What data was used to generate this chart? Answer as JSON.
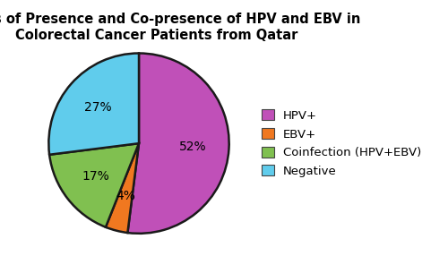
{
  "title": "Status of Presence and Co-presence of HPV and EBV in\nColorectal Cancer Patients from Qatar",
  "labels": [
    "HPV+",
    "EBV+",
    "Coinfection (HPV+EBV)",
    "Negative"
  ],
  "values": [
    52,
    4,
    17,
    27
  ],
  "colors": [
    "#c050b8",
    "#f07820",
    "#80c050",
    "#60ccec"
  ],
  "pct_labels": [
    "52%",
    "4%",
    "17%",
    "27%"
  ],
  "startangle": 90,
  "title_fontsize": 10.5,
  "legend_fontsize": 9.5,
  "pct_fontsize": 10,
  "edge_color": "#1a1a1a",
  "edge_linewidth": 1.8,
  "background_color": "#ffffff"
}
